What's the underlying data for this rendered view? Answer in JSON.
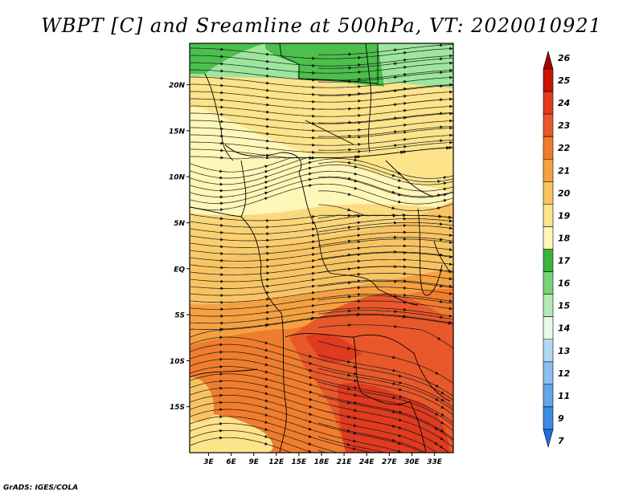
{
  "title": "WBPT [C] and Sreamline at 500hPa, VT: 2020010921",
  "credit": "GrADS: IGES/COLA",
  "map": {
    "lat_labels": [
      {
        "lat": 20,
        "label": "20N"
      },
      {
        "lat": 15,
        "label": "15N"
      },
      {
        "lat": 10,
        "label": "10N"
      },
      {
        "lat": 5,
        "label": "5N"
      },
      {
        "lat": 0,
        "label": "EQ"
      },
      {
        "lat": -5,
        "label": "5S"
      },
      {
        "lat": -10,
        "label": "10S"
      },
      {
        "lat": -15,
        "label": "15S"
      }
    ],
    "lon_labels": [
      {
        "lon": 3,
        "label": "3E"
      },
      {
        "lon": 6,
        "label": "6E"
      },
      {
        "lon": 9,
        "label": "9E"
      },
      {
        "lon": 12,
        "label": "12E"
      },
      {
        "lon": 15,
        "label": "15E"
      },
      {
        "lon": 18,
        "label": "18E"
      },
      {
        "lon": 21,
        "label": "21E"
      },
      {
        "lon": 24,
        "label": "24E"
      },
      {
        "lon": 27,
        "label": "27E"
      },
      {
        "lon": 30,
        "label": "30E"
      },
      {
        "lon": 33,
        "label": "33E"
      }
    ],
    "lon_range": [
      0.5,
      35.5
    ],
    "lat_range": [
      -20,
      24.5
    ],
    "fill_colors": {
      "green": "#4cbf4c",
      "light_green": "#9ee69e",
      "pale_yellow": "#fff7b8",
      "yellow": "#fde38a",
      "light_orange": "#f8c463",
      "orange": "#f5a142",
      "dark_orange": "#f07d2d",
      "red_orange": "#e9582a",
      "red": "#e03a1f"
    }
  },
  "colorbar": {
    "labels": [
      "26",
      "25",
      "24",
      "23",
      "22",
      "21",
      "20",
      "19",
      "18",
      "17",
      "16",
      "15",
      "14",
      "13",
      "12",
      "11",
      "9",
      "7"
    ],
    "colors": [
      "#a50000",
      "#c81400",
      "#e03a1f",
      "#e9582a",
      "#f07d2d",
      "#f5a142",
      "#f8c463",
      "#fde38a",
      "#fff7b8",
      "#3cb43c",
      "#78d278",
      "#b4ebb4",
      "#e6fae6",
      "#b4d7f5",
      "#8cbef0",
      "#64a5eb",
      "#3c8ce1",
      "#1e6edc"
    ]
  }
}
